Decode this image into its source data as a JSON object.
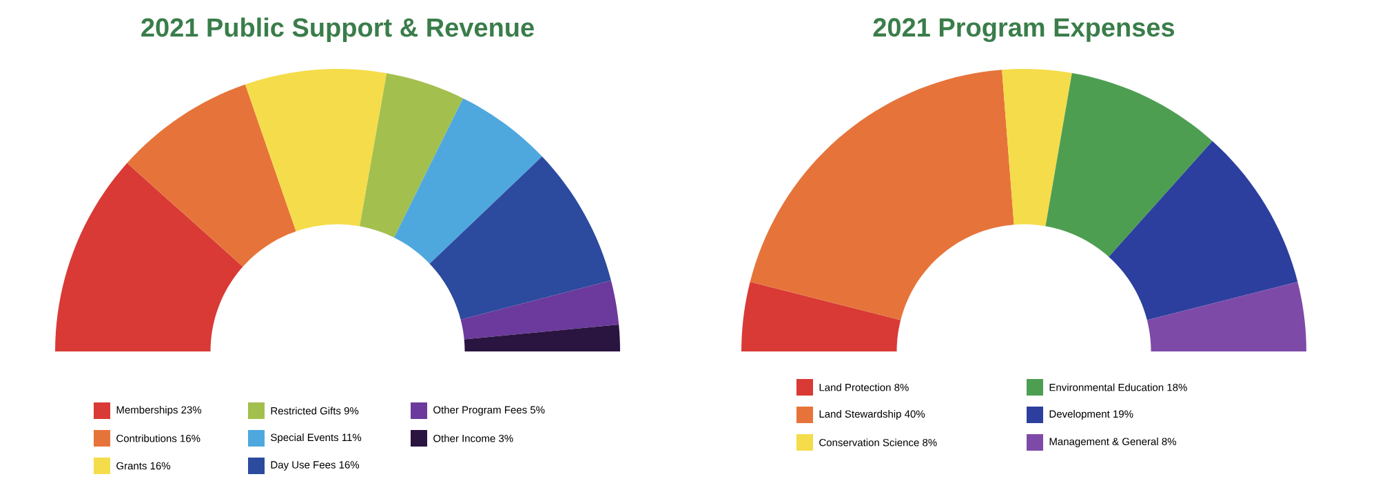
{
  "chart_data": [
    {
      "type": "donut",
      "title": "2021 Public Support & Revenue",
      "categories": [
        "Memberships",
        "Contributions",
        "Grants",
        "Restricted Gifts",
        "Special Events",
        "Day Use Fees",
        "Other Program Fees",
        "Other Income"
      ],
      "values": [
        23,
        16,
        16,
        9,
        11,
        16,
        5,
        3
      ],
      "value_labels": [
        "23%",
        "16%",
        "16%",
        "9%",
        "11%",
        "16%",
        "5%",
        "3%"
      ],
      "colors": [
        "#d93a35",
        "#e6743a",
        "#f5dc4a",
        "#a3bf4e",
        "#4ea8de",
        "#2c4a9e",
        "#6b3a9c",
        "#2a1440"
      ],
      "legend": "bottom"
    },
    {
      "type": "donut",
      "title": "2021 Program Expenses",
      "categories": [
        "Land Protection",
        "Land Stewardship",
        "Conservation Science",
        "Environmental Education",
        "Development",
        "Management & General"
      ],
      "values": [
        8,
        40,
        8,
        18,
        19,
        8
      ],
      "value_labels": [
        "8%",
        "40%",
        "8%",
        "18%",
        "19%",
        "8%"
      ],
      "colors": [
        "#d93a35",
        "#e6743a",
        "#f5dc4a",
        "#4e9e52",
        "#2c3f9e",
        "#7e4aa8"
      ],
      "legend": "bottom"
    }
  ]
}
